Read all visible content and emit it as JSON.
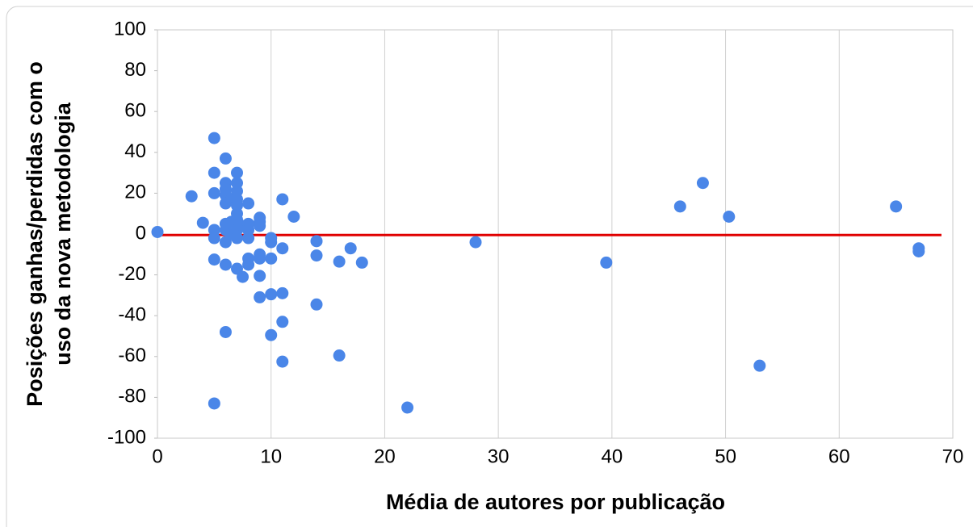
{
  "chart_data": {
    "type": "scatter",
    "xlabel": "Média de autores por publicação",
    "ylabel": [
      "Posições ganhas/perdidas com o",
      "uso da nova metodologia"
    ],
    "x": [
      0,
      3,
      4,
      5,
      5,
      5,
      5,
      5,
      5,
      5,
      6,
      6,
      6,
      6,
      6,
      6,
      6,
      6,
      6,
      6,
      6.5,
      6.5,
      6.5,
      7,
      7,
      7,
      7,
      7,
      7,
      7,
      7,
      7,
      7,
      7.5,
      7.5,
      8,
      8,
      8,
      8,
      8,
      8,
      9,
      9,
      9,
      9,
      9,
      9,
      9,
      10,
      10,
      10,
      10,
      10,
      11,
      11,
      11,
      11,
      11,
      12,
      14,
      14,
      14,
      16,
      16,
      17,
      18,
      22,
      28,
      39.5,
      46,
      48,
      50.3,
      53,
      65,
      67,
      67
    ],
    "series": [
      {
        "color": "#4a86e8",
        "values": [
          1,
          18.5,
          5.5,
          47,
          30,
          20,
          2,
          -2,
          -12.5,
          -83,
          37,
          25,
          22,
          19,
          15,
          5,
          2,
          -4,
          -15,
          -48,
          17,
          6,
          0,
          30,
          25,
          21,
          17,
          14,
          10,
          7,
          2,
          -2,
          -17,
          -21,
          4,
          15,
          5,
          2,
          -2,
          -12,
          -15,
          8,
          6,
          4,
          -10,
          -12,
          -20.5,
          -31,
          -2,
          -4,
          -12,
          -29.5,
          -49.5,
          17,
          -7,
          -29,
          -43,
          -62.5,
          8.5,
          -3.5,
          -10.5,
          -34.5,
          -13.5,
          -59.5,
          -7,
          -14,
          -85,
          -4,
          -14,
          13.5,
          25,
          8.5,
          -64.5,
          13.5,
          -7,
          -8.5
        ]
      }
    ],
    "reference_line": {
      "value": -0.5,
      "color": "#e00000"
    },
    "xlim": [
      0,
      70
    ],
    "xticks": [
      0,
      10,
      20,
      30,
      40,
      50,
      60,
      70
    ],
    "ylim": [
      -100,
      100
    ],
    "yticks": [
      -100,
      -80,
      -60,
      -40,
      -20,
      0,
      20,
      40,
      60,
      80,
      100
    ],
    "grid": "x"
  }
}
